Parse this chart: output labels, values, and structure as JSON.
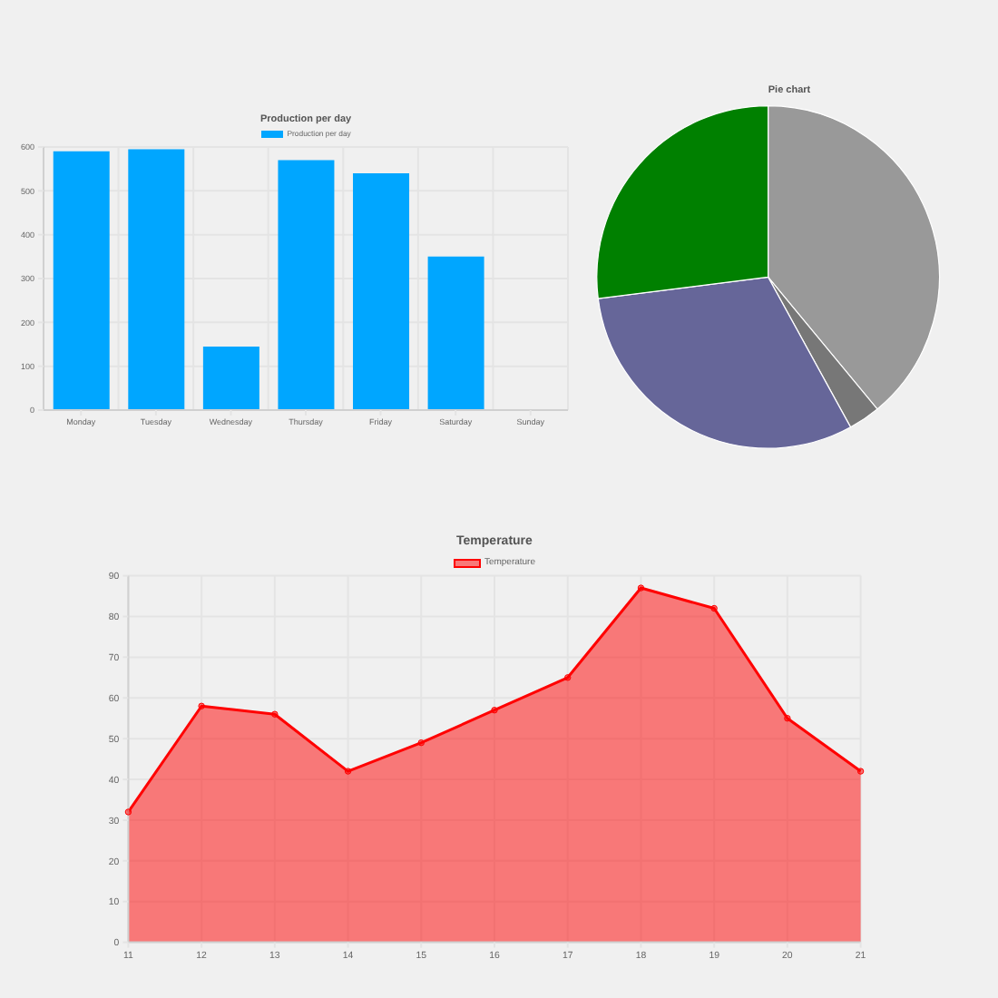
{
  "chart_data": [
    {
      "type": "bar",
      "title": "Production per day",
      "categories": [
        "Monday",
        "Tuesday",
        "Wednesday",
        "Thursday",
        "Friday",
        "Saturday",
        "Sunday"
      ],
      "series": [
        {
          "name": "Production per day",
          "color": "#00a6ff",
          "values": [
            590,
            595,
            145,
            570,
            540,
            350,
            null
          ]
        }
      ],
      "ylim": [
        0,
        600
      ],
      "yticks": [
        0,
        100,
        200,
        300,
        400,
        500,
        600
      ],
      "grid": true,
      "legend": "top"
    },
    {
      "type": "pie",
      "title": "Pie chart",
      "categories": [
        null,
        null,
        null,
        null
      ],
      "values": [
        39,
        3,
        31,
        27
      ],
      "colors": [
        "#999999",
        "#777777",
        "#666699",
        "#008000"
      ]
    },
    {
      "type": "area",
      "title": "Temperature",
      "categories": [
        "11",
        "12",
        "13",
        "14",
        "15",
        "16",
        "17",
        "18",
        "19",
        "20",
        "21"
      ],
      "series": [
        {
          "name": "Temperature",
          "color": "#ff0000",
          "values": [
            32,
            58,
            56,
            42,
            49,
            57,
            65,
            87,
            82,
            55,
            42
          ]
        }
      ],
      "ylim": [
        0,
        90
      ],
      "yticks": [
        0,
        10,
        20,
        30,
        40,
        50,
        60,
        70,
        80,
        90
      ],
      "grid": true,
      "legend": "top",
      "marker": "circle"
    }
  ]
}
